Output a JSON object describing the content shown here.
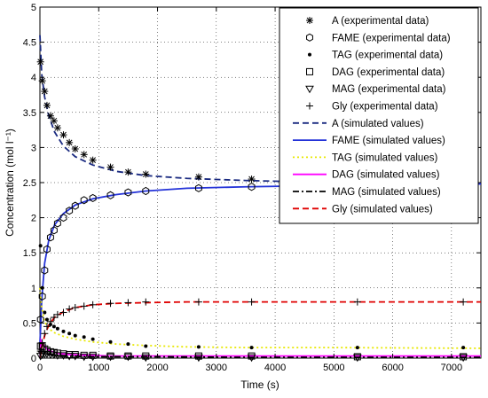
{
  "chart_data": {
    "type": "line",
    "title": "",
    "xlabel": "Time (s)",
    "ylabel": "Concentration (mol l⁻¹)",
    "xlim": [
      0,
      7500
    ],
    "ylim": [
      0,
      5
    ],
    "xticks": [
      "0",
      "1000",
      "2000",
      "3000",
      "4000",
      "5000",
      "6000",
      "7000"
    ],
    "yticks": [
      "0",
      "0.5",
      "1",
      "1.5",
      "2",
      "2.5",
      "3",
      "3.5",
      "4",
      "4.5",
      "5"
    ],
    "grid": true,
    "legend_position": "top-right",
    "series": [
      {
        "name": "A (experimental data)",
        "kind": "marker",
        "marker": "star",
        "color": "#000000",
        "x": [
          10,
          40,
          80,
          120,
          180,
          240,
          300,
          400,
          500,
          600,
          750,
          900,
          1200,
          1500,
          1800,
          2700,
          3600,
          5400,
          7200
        ],
        "y": [
          4.22,
          3.95,
          3.8,
          3.6,
          3.45,
          3.38,
          3.28,
          3.18,
          3.07,
          2.98,
          2.9,
          2.82,
          2.72,
          2.65,
          2.62,
          2.58,
          2.55,
          2.52,
          2.5
        ]
      },
      {
        "name": "FAME (experimental data)",
        "kind": "marker",
        "marker": "hexagon",
        "color": "#000000",
        "x": [
          10,
          40,
          80,
          120,
          180,
          240,
          300,
          400,
          500,
          600,
          750,
          900,
          1200,
          1500,
          1800,
          2700,
          3600,
          5400,
          7200
        ],
        "y": [
          0.55,
          0.88,
          1.25,
          1.55,
          1.72,
          1.82,
          1.92,
          2.0,
          2.1,
          2.17,
          2.25,
          2.28,
          2.32,
          2.36,
          2.38,
          2.42,
          2.44,
          2.46,
          2.48
        ]
      },
      {
        "name": "TAG (experimental data)",
        "kind": "marker",
        "marker": "dot",
        "color": "#000000",
        "x": [
          10,
          40,
          80,
          120,
          180,
          240,
          300,
          400,
          500,
          600,
          750,
          900,
          1200,
          1500,
          1800,
          2700,
          3600,
          5400,
          7200
        ],
        "y": [
          1.6,
          1.0,
          0.65,
          0.55,
          0.48,
          0.45,
          0.42,
          0.38,
          0.35,
          0.32,
          0.3,
          0.27,
          0.23,
          0.2,
          0.17,
          0.16,
          0.15,
          0.15,
          0.15
        ]
      },
      {
        "name": "DAG (experimental data)",
        "kind": "marker",
        "marker": "square",
        "color": "#000000",
        "x": [
          10,
          40,
          80,
          120,
          180,
          240,
          300,
          400,
          500,
          600,
          750,
          900,
          1200,
          1500,
          1800,
          2700,
          3600,
          5400,
          7200
        ],
        "y": [
          0.17,
          0.16,
          0.13,
          0.11,
          0.09,
          0.08,
          0.07,
          0.06,
          0.05,
          0.05,
          0.04,
          0.04,
          0.03,
          0.03,
          0.03,
          0.03,
          0.03,
          0.02,
          0.02
        ]
      },
      {
        "name": "MAG (experimental data)",
        "kind": "marker",
        "marker": "triangle",
        "color": "#000000",
        "x": [
          10,
          40,
          80,
          120,
          180,
          240,
          300,
          400,
          500,
          600,
          750,
          900,
          1200,
          1500,
          1800,
          2700,
          3600,
          5400,
          7200
        ],
        "y": [
          0.03,
          0.05,
          0.06,
          0.06,
          0.05,
          0.05,
          0.04,
          0.04,
          0.03,
          0.03,
          0.02,
          0.02,
          0.02,
          0.02,
          0.01,
          0.01,
          0.01,
          0.01,
          0.01
        ]
      },
      {
        "name": "Gly (experimental data)",
        "kind": "marker",
        "marker": "plus",
        "color": "#000000",
        "x": [
          10,
          40,
          80,
          120,
          180,
          240,
          300,
          400,
          500,
          600,
          750,
          900,
          1200,
          1500,
          1800,
          2700,
          3600,
          5400,
          7200
        ],
        "y": [
          0.1,
          0.22,
          0.35,
          0.45,
          0.52,
          0.58,
          0.62,
          0.65,
          0.7,
          0.72,
          0.74,
          0.76,
          0.78,
          0.79,
          0.8,
          0.8,
          0.8,
          0.8,
          0.8
        ]
      },
      {
        "name": "A (simulated values)",
        "kind": "line",
        "dash": "dashed",
        "color": "#1a2a80",
        "x": [
          0,
          30,
          80,
          150,
          250,
          400,
          600,
          900,
          1300,
          1800,
          2500,
          3500,
          5000,
          7500
        ],
        "y": [
          4.6,
          4.05,
          3.72,
          3.45,
          3.22,
          3.02,
          2.87,
          2.75,
          2.66,
          2.6,
          2.56,
          2.53,
          2.5,
          2.48
        ]
      },
      {
        "name": "FAME (simulated values)",
        "kind": "line",
        "dash": "solid",
        "color": "#2433d8",
        "x": [
          0,
          30,
          80,
          150,
          250,
          400,
          600,
          900,
          1300,
          1800,
          2500,
          3500,
          5000,
          7500
        ],
        "y": [
          0.2,
          0.82,
          1.35,
          1.68,
          1.9,
          2.06,
          2.18,
          2.27,
          2.33,
          2.38,
          2.42,
          2.44,
          2.46,
          2.48
        ]
      },
      {
        "name": "TAG (simulated values)",
        "kind": "line",
        "dash": "dotted",
        "color": "#e8e800",
        "x": [
          0,
          30,
          80,
          150,
          250,
          400,
          600,
          900,
          1300,
          1800,
          2500,
          3500,
          5000,
          7500
        ],
        "y": [
          1.0,
          0.72,
          0.52,
          0.42,
          0.36,
          0.31,
          0.27,
          0.23,
          0.2,
          0.18,
          0.16,
          0.15,
          0.15,
          0.14
        ]
      },
      {
        "name": "DAG (simulated values)",
        "kind": "line",
        "dash": "solid",
        "color": "#ff00ff",
        "x": [
          0,
          20,
          50,
          100,
          180,
          300,
          500,
          800,
          1200,
          2000,
          3500,
          7500
        ],
        "y": [
          0.0,
          0.25,
          0.2,
          0.14,
          0.1,
          0.07,
          0.05,
          0.04,
          0.03,
          0.03,
          0.03,
          0.03
        ]
      },
      {
        "name": "MAG (simulated values)",
        "kind": "line",
        "dash": "dashdot",
        "color": "#000000",
        "x": [
          0,
          20,
          50,
          100,
          180,
          300,
          500,
          800,
          1200,
          2000,
          3500,
          7500
        ],
        "y": [
          0.0,
          0.08,
          0.09,
          0.07,
          0.05,
          0.04,
          0.03,
          0.02,
          0.02,
          0.02,
          0.01,
          0.01
        ]
      },
      {
        "name": "Gly (simulated values)",
        "kind": "line",
        "dash": "dashed",
        "color": "#e00000",
        "x": [
          0,
          30,
          80,
          150,
          250,
          400,
          600,
          900,
          1300,
          1800,
          2500,
          3500,
          5000,
          7500
        ],
        "y": [
          0.0,
          0.15,
          0.32,
          0.47,
          0.58,
          0.66,
          0.72,
          0.76,
          0.78,
          0.79,
          0.8,
          0.8,
          0.8,
          0.8
        ]
      }
    ]
  }
}
